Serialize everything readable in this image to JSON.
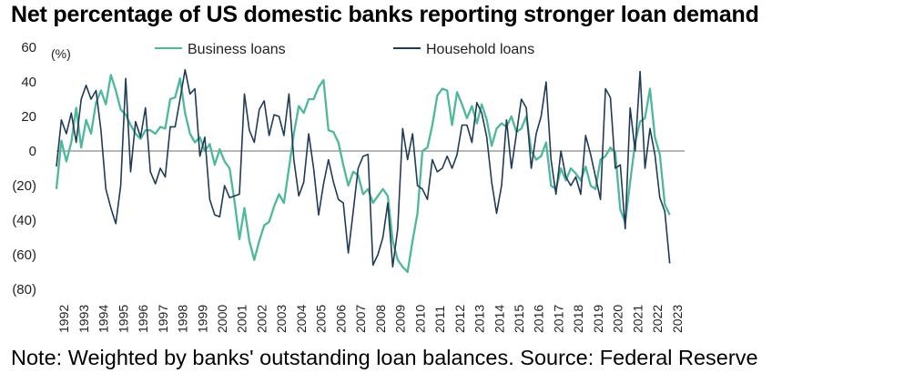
{
  "title": "Net percentage of US domestic banks reporting stronger loan demand",
  "note": "Note: Weighted by banks' outstanding loan balances. Source: Federal Reserve",
  "chart_data": {
    "type": "line",
    "ylabel": "(%)",
    "ylim": [
      -80,
      60
    ],
    "xlim": [
      1992,
      2023.75
    ],
    "y_ticks": [
      60,
      40,
      20,
      0,
      -20,
      -40,
      -60,
      -80
    ],
    "y_tick_labels": [
      "60",
      "40",
      "20",
      "0",
      "(20)",
      "(40)",
      "(60)",
      "(80)"
    ],
    "x_ticks": [
      1992,
      1993,
      1994,
      1995,
      1996,
      1997,
      1998,
      1999,
      2000,
      2001,
      2002,
      2003,
      2004,
      2005,
      2006,
      2007,
      2008,
      2009,
      2010,
      2011,
      2012,
      2013,
      2014,
      2015,
      2016,
      2017,
      2018,
      2019,
      2020,
      2021,
      2022,
      2023
    ],
    "legend_position": "top-center",
    "grid": false,
    "series": [
      {
        "name": "Business loans",
        "color": "#4db89a",
        "points": [
          [
            1992.0,
            -22
          ],
          [
            1992.25,
            6
          ],
          [
            1992.5,
            -6
          ],
          [
            1992.75,
            5
          ],
          [
            1993.0,
            25
          ],
          [
            1993.25,
            2
          ],
          [
            1993.5,
            18
          ],
          [
            1993.75,
            10
          ],
          [
            1994.0,
            28
          ],
          [
            1994.25,
            35
          ],
          [
            1994.5,
            27
          ],
          [
            1994.75,
            44
          ],
          [
            1995.0,
            35
          ],
          [
            1995.25,
            24
          ],
          [
            1995.5,
            21
          ],
          [
            1995.75,
            15
          ],
          [
            1996.0,
            10
          ],
          [
            1996.25,
            7
          ],
          [
            1996.5,
            12
          ],
          [
            1996.75,
            12
          ],
          [
            1997.0,
            10
          ],
          [
            1997.25,
            14
          ],
          [
            1997.5,
            13
          ],
          [
            1997.75,
            30
          ],
          [
            1998.0,
            31
          ],
          [
            1998.25,
            42
          ],
          [
            1998.5,
            22
          ],
          [
            1998.75,
            10
          ],
          [
            1999.0,
            5
          ],
          [
            1999.25,
            8
          ],
          [
            1999.5,
            0
          ],
          [
            1999.75,
            4
          ],
          [
            2000.0,
            -8
          ],
          [
            2000.25,
            1
          ],
          [
            2000.5,
            -6
          ],
          [
            2000.75,
            -10
          ],
          [
            2001.0,
            -29
          ],
          [
            2001.25,
            -51
          ],
          [
            2001.5,
            -33
          ],
          [
            2001.75,
            -52
          ],
          [
            2002.0,
            -63
          ],
          [
            2002.25,
            -52
          ],
          [
            2002.5,
            -43
          ],
          [
            2002.75,
            -41
          ],
          [
            2003.0,
            -32
          ],
          [
            2003.25,
            -25
          ],
          [
            2003.5,
            -30
          ],
          [
            2003.75,
            -10
          ],
          [
            2004.0,
            10
          ],
          [
            2004.25,
            26
          ],
          [
            2004.5,
            22
          ],
          [
            2004.75,
            30
          ],
          [
            2005.0,
            30
          ],
          [
            2005.25,
            37
          ],
          [
            2005.5,
            41
          ],
          [
            2005.75,
            12
          ],
          [
            2006.0,
            11
          ],
          [
            2006.25,
            5
          ],
          [
            2006.5,
            -8
          ],
          [
            2006.75,
            -20
          ],
          [
            2007.0,
            -12
          ],
          [
            2007.25,
            -14
          ],
          [
            2007.5,
            -25
          ],
          [
            2007.75,
            -22
          ],
          [
            2008.0,
            -30
          ],
          [
            2008.25,
            -26
          ],
          [
            2008.5,
            -22
          ],
          [
            2008.75,
            -26
          ],
          [
            2009.0,
            -52
          ],
          [
            2009.25,
            -63
          ],
          [
            2009.5,
            -67
          ],
          [
            2009.75,
            -70
          ],
          [
            2010.0,
            -52
          ],
          [
            2010.25,
            -36
          ],
          [
            2010.5,
            0
          ],
          [
            2010.75,
            2
          ],
          [
            2011.0,
            15
          ],
          [
            2011.25,
            32
          ],
          [
            2011.5,
            36
          ],
          [
            2011.75,
            35
          ],
          [
            2012.0,
            15
          ],
          [
            2012.25,
            34
          ],
          [
            2012.5,
            27
          ],
          [
            2012.75,
            19
          ],
          [
            2013.0,
            26
          ],
          [
            2013.25,
            16
          ],
          [
            2013.5,
            27
          ],
          [
            2013.75,
            18
          ],
          [
            2014.0,
            3
          ],
          [
            2014.25,
            13
          ],
          [
            2014.5,
            16
          ],
          [
            2014.75,
            14
          ],
          [
            2015.0,
            20
          ],
          [
            2015.25,
            11
          ],
          [
            2015.5,
            13
          ],
          [
            2015.75,
            20
          ],
          [
            2016.0,
            0
          ],
          [
            2016.25,
            -5
          ],
          [
            2016.5,
            -3
          ],
          [
            2016.75,
            5
          ],
          [
            2017.0,
            -20
          ],
          [
            2017.25,
            -22
          ],
          [
            2017.5,
            -10
          ],
          [
            2017.75,
            -17
          ],
          [
            2018.0,
            -10
          ],
          [
            2018.25,
            -13
          ],
          [
            2018.5,
            -17
          ],
          [
            2018.75,
            -9
          ],
          [
            2019.0,
            -20
          ],
          [
            2019.25,
            -22
          ],
          [
            2019.5,
            -5
          ],
          [
            2019.75,
            -3
          ],
          [
            2020.0,
            2
          ],
          [
            2020.25,
            -1
          ],
          [
            2020.5,
            -34
          ],
          [
            2020.75,
            -41
          ],
          [
            2021.0,
            -18
          ],
          [
            2021.25,
            5
          ],
          [
            2021.5,
            17
          ],
          [
            2021.75,
            19
          ],
          [
            2022.0,
            36
          ],
          [
            2022.25,
            8
          ],
          [
            2022.5,
            -2
          ],
          [
            2022.75,
            -31
          ],
          [
            2023.0,
            -37
          ]
        ]
      },
      {
        "name": "Household loans",
        "color": "#1f3b57",
        "points": [
          [
            1992.0,
            -9
          ],
          [
            1992.25,
            18
          ],
          [
            1992.5,
            10
          ],
          [
            1992.75,
            22
          ],
          [
            1993.0,
            5
          ],
          [
            1993.25,
            30
          ],
          [
            1993.5,
            38
          ],
          [
            1993.75,
            30
          ],
          [
            1994.0,
            35
          ],
          [
            1994.25,
            12
          ],
          [
            1994.5,
            -22
          ],
          [
            1994.75,
            -33
          ],
          [
            1995.0,
            -42
          ],
          [
            1995.25,
            -20
          ],
          [
            1995.5,
            42
          ],
          [
            1995.75,
            -12
          ],
          [
            1996.0,
            17
          ],
          [
            1996.25,
            8
          ],
          [
            1996.5,
            25
          ],
          [
            1996.75,
            -12
          ],
          [
            1997.0,
            -19
          ],
          [
            1997.25,
            -10
          ],
          [
            1997.5,
            -15
          ],
          [
            1997.75,
            14
          ],
          [
            1998.0,
            14
          ],
          [
            1998.25,
            30
          ],
          [
            1998.5,
            47
          ],
          [
            1998.75,
            33
          ],
          [
            1999.0,
            36
          ],
          [
            1999.25,
            -3
          ],
          [
            1999.5,
            8
          ],
          [
            1999.75,
            -28
          ],
          [
            2000.0,
            -37
          ],
          [
            2000.25,
            -38
          ],
          [
            2000.5,
            -20
          ],
          [
            2000.75,
            -27
          ],
          [
            2001.0,
            -26
          ],
          [
            2001.25,
            -25
          ],
          [
            2001.5,
            33
          ],
          [
            2001.75,
            12
          ],
          [
            2002.0,
            5
          ],
          [
            2002.25,
            24
          ],
          [
            2002.5,
            29
          ],
          [
            2002.75,
            9
          ],
          [
            2003.0,
            21
          ],
          [
            2003.25,
            20
          ],
          [
            2003.5,
            9
          ],
          [
            2003.75,
            33
          ],
          [
            2004.0,
            -5
          ],
          [
            2004.25,
            -26
          ],
          [
            2004.5,
            -18
          ],
          [
            2004.75,
            10
          ],
          [
            2005.0,
            -10
          ],
          [
            2005.25,
            -37
          ],
          [
            2005.5,
            -19
          ],
          [
            2005.75,
            -5
          ],
          [
            2006.0,
            -18
          ],
          [
            2006.25,
            -28
          ],
          [
            2006.5,
            -30
          ],
          [
            2006.75,
            -59
          ],
          [
            2007.0,
            -35
          ],
          [
            2007.25,
            -10
          ],
          [
            2007.5,
            -3
          ],
          [
            2007.75,
            -2
          ],
          [
            2008.0,
            -66
          ],
          [
            2008.25,
            -60
          ],
          [
            2008.5,
            -50
          ],
          [
            2008.75,
            -30
          ],
          [
            2009.0,
            -67
          ],
          [
            2009.25,
            -45
          ],
          [
            2009.5,
            13
          ],
          [
            2009.75,
            -5
          ],
          [
            2010.0,
            10
          ],
          [
            2010.25,
            -20
          ],
          [
            2010.5,
            -22
          ],
          [
            2010.75,
            -28
          ],
          [
            2011.0,
            -5
          ],
          [
            2011.25,
            -12
          ],
          [
            2011.5,
            -10
          ],
          [
            2011.75,
            -3
          ],
          [
            2012.0,
            -10
          ],
          [
            2012.25,
            -2
          ],
          [
            2012.5,
            15
          ],
          [
            2012.75,
            15
          ],
          [
            2013.0,
            5
          ],
          [
            2013.25,
            28
          ],
          [
            2013.5,
            22
          ],
          [
            2013.75,
            8
          ],
          [
            2014.0,
            -18
          ],
          [
            2014.25,
            -36
          ],
          [
            2014.5,
            -20
          ],
          [
            2014.75,
            18
          ],
          [
            2015.0,
            -10
          ],
          [
            2015.25,
            10
          ],
          [
            2015.5,
            30
          ],
          [
            2015.75,
            25
          ],
          [
            2016.0,
            -10
          ],
          [
            2016.25,
            10
          ],
          [
            2016.5,
            20
          ],
          [
            2016.75,
            40
          ],
          [
            2017.0,
            -5
          ],
          [
            2017.25,
            -25
          ],
          [
            2017.5,
            0
          ],
          [
            2017.75,
            -15
          ],
          [
            2018.0,
            -20
          ],
          [
            2018.25,
            -15
          ],
          [
            2018.5,
            -25
          ],
          [
            2018.75,
            9
          ],
          [
            2019.0,
            -2
          ],
          [
            2019.25,
            -15
          ],
          [
            2019.5,
            -28
          ],
          [
            2019.75,
            36
          ],
          [
            2020.0,
            31
          ],
          [
            2020.25,
            -10
          ],
          [
            2020.5,
            -8
          ],
          [
            2020.75,
            -45
          ],
          [
            2021.0,
            25
          ],
          [
            2021.25,
            0
          ],
          [
            2021.5,
            46
          ],
          [
            2021.75,
            -10
          ],
          [
            2022.0,
            13
          ],
          [
            2022.25,
            -2
          ],
          [
            2022.5,
            -27
          ],
          [
            2022.75,
            -35
          ],
          [
            2023.0,
            -65
          ]
        ]
      }
    ]
  }
}
